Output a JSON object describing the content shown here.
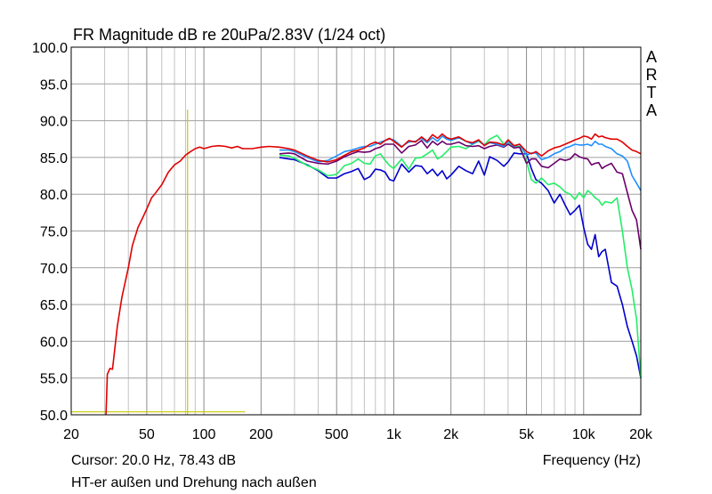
{
  "chart_data": {
    "type": "line",
    "title": "FR Magnitude dB re 20uPa/2.83V (1/24 oct)",
    "watermark": "ARTA",
    "xlabel": "Frequency (Hz)",
    "ylabel": "",
    "x_scale": "log",
    "xlim": [
      20,
      20000
    ],
    "ylim": [
      50,
      100
    ],
    "grid": true,
    "x_tick_labels": [
      {
        "value": 20,
        "label": "20"
      },
      {
        "value": 50,
        "label": "50"
      },
      {
        "value": 100,
        "label": "100"
      },
      {
        "value": 200,
        "label": "200"
      },
      {
        "value": 500,
        "label": "500"
      },
      {
        "value": 1000,
        "label": "1k"
      },
      {
        "value": 2000,
        "label": "2k"
      },
      {
        "value": 5000,
        "label": "5k"
      },
      {
        "value": 10000,
        "label": "10k"
      },
      {
        "value": 20000,
        "label": "20k"
      }
    ],
    "y_tick_labels": [
      "50.0",
      "55.0",
      "60.0",
      "65.0",
      "70.0",
      "75.0",
      "80.0",
      "85.0",
      "90.0",
      "95.0",
      "100.0"
    ],
    "cursor_text": "Cursor: 20.0 Hz, 78.43 dB",
    "note": "HT-er außen und Drehung nach außen",
    "markers": {
      "color": "#c8c800",
      "vertical_line": {
        "x": 82,
        "y_top": 91.5,
        "y_bottom": 50
      },
      "horizontal_line": {
        "y": 50.4,
        "x_start": 20,
        "x_end": 165
      }
    },
    "series": [
      {
        "color": "#e00000",
        "x": [
          30.5,
          31,
          32,
          33,
          35,
          37,
          40,
          42,
          45,
          48,
          50,
          53,
          55,
          60,
          65,
          70,
          75,
          80,
          85,
          90,
          95,
          100,
          110,
          120,
          130,
          140,
          150,
          160,
          180,
          200,
          220,
          250,
          280,
          300,
          350,
          400,
          450,
          500,
          550,
          600,
          650,
          700,
          750,
          800,
          850,
          900,
          950,
          1000,
          1100,
          1200,
          1300,
          1400,
          1500,
          1600,
          1700,
          1800,
          1900,
          2000,
          2200,
          2400,
          2600,
          2800,
          3000,
          3200,
          3500,
          3800,
          4000,
          4300,
          4600,
          5000,
          5300,
          5600,
          6000,
          6500,
          7000,
          7500,
          8000,
          8500,
          9000,
          9500,
          10000,
          10500,
          11000,
          11500,
          12000,
          12500,
          13000,
          14000,
          15000,
          16000,
          17000,
          18000,
          19000,
          20000
        ],
        "y": [
          50,
          55.5,
          56.3,
          56.2,
          62,
          66,
          70,
          73,
          75.5,
          77,
          78,
          79.5,
          80,
          81.3,
          83,
          84,
          84.5,
          85.3,
          85.8,
          86.2,
          86.4,
          86.2,
          86.5,
          86.6,
          86.5,
          86.3,
          86.5,
          86.2,
          86.2,
          86.4,
          86.5,
          86.4,
          86.2,
          86,
          85.2,
          84.6,
          84.4,
          84.7,
          85.3,
          85.8,
          86,
          86.3,
          86.8,
          87.1,
          86.8,
          87.3,
          87.6,
          87.2,
          86.4,
          87.3,
          87.1,
          87.8,
          87.2,
          88.1,
          87.6,
          88.2,
          87.7,
          87.5,
          87.8,
          87.2,
          87,
          87.4,
          86.6,
          87.1,
          87,
          86.7,
          87.4,
          86.6,
          86.8,
          85.8,
          85.5,
          85.8,
          85.2,
          85.9,
          86.3,
          86.5,
          86.8,
          87.1,
          87.4,
          87.6,
          87.9,
          87.8,
          87.5,
          88.2,
          87.8,
          87.9,
          87.7,
          87.5,
          87.5,
          87.1,
          86.5,
          86,
          85.8,
          85.5
        ]
      },
      {
        "color": "#1e90ff",
        "x": [
          250,
          280,
          300,
          350,
          400,
          450,
          500,
          550,
          600,
          650,
          700,
          750,
          800,
          850,
          900,
          950,
          1000,
          1100,
          1200,
          1300,
          1400,
          1500,
          1600,
          1700,
          1800,
          1900,
          2000,
          2200,
          2400,
          2600,
          2800,
          3000,
          3200,
          3500,
          3800,
          4000,
          4300,
          4600,
          5000,
          5300,
          5600,
          6000,
          6500,
          7000,
          7500,
          8000,
          8500,
          9000,
          9500,
          10000,
          10500,
          11000,
          11500,
          12000,
          12500,
          13000,
          14000,
          15000,
          16000,
          17000,
          18000,
          19000,
          20000
        ],
        "y": [
          86,
          86,
          85.8,
          85,
          84.4,
          84.6,
          85.2,
          85.8,
          86,
          86.3,
          86.5,
          86.5,
          86.8,
          87.1,
          87.3,
          87.5,
          87.4,
          86.5,
          87.1,
          87.2,
          87.6,
          87,
          87.7,
          87.2,
          87.9,
          87.5,
          87.3,
          87.7,
          87.2,
          86.8,
          87.3,
          86.7,
          87,
          86.8,
          86.5,
          87.2,
          86.5,
          86.8,
          85.3,
          85.6,
          85.6,
          84.7,
          85,
          85.5,
          85.8,
          86.3,
          86.5,
          86.8,
          86.7,
          86.7,
          86.8,
          86.6,
          87.2,
          86.8,
          86.8,
          86.5,
          86.2,
          85.5,
          85.2,
          84.5,
          82.5,
          81.5,
          80.5
        ]
      },
      {
        "color": "#6b006b",
        "x": [
          250,
          280,
          300,
          350,
          400,
          450,
          500,
          550,
          600,
          650,
          700,
          750,
          800,
          850,
          900,
          950,
          1000,
          1100,
          1200,
          1300,
          1400,
          1500,
          1600,
          1700,
          1800,
          1900,
          2000,
          2200,
          2400,
          2600,
          2800,
          3000,
          3200,
          3500,
          3800,
          4000,
          4300,
          4600,
          5000,
          5300,
          5600,
          6000,
          6500,
          7000,
          7500,
          8000,
          8500,
          9000,
          9500,
          10000,
          10500,
          11000,
          11500,
          12000,
          12500,
          13000,
          14000,
          15000,
          16000,
          17000,
          18000,
          19000,
          20000
        ],
        "y": [
          85.5,
          85.6,
          85.5,
          84.5,
          84.2,
          84.1,
          84.5,
          85.1,
          85.5,
          85.8,
          85.7,
          85.8,
          86.2,
          86.4,
          86.8,
          86.8,
          86.8,
          85.6,
          86.5,
          86.7,
          87.3,
          86.3,
          87.2,
          86.7,
          87.2,
          86.8,
          86.8,
          87.1,
          86.6,
          86.5,
          86.6,
          86.2,
          86.5,
          86.7,
          86.4,
          86.8,
          86.3,
          86.4,
          84.2,
          84.8,
          84.8,
          83.8,
          83.6,
          84.2,
          84.8,
          84.6,
          84.8,
          85.5,
          85.1,
          84.9,
          84.8,
          84,
          84.2,
          84.3,
          83.5,
          83.8,
          84.2,
          83,
          82.8,
          80.2,
          77.8,
          76.5,
          72.5
        ]
      },
      {
        "color": "#22ee66",
        "x": [
          250,
          280,
          300,
          350,
          400,
          450,
          500,
          550,
          600,
          650,
          700,
          750,
          800,
          850,
          900,
          950,
          1000,
          1100,
          1200,
          1300,
          1400,
          1500,
          1600,
          1700,
          1800,
          1900,
          2000,
          2200,
          2400,
          2600,
          2800,
          3000,
          3200,
          3500,
          3800,
          4000,
          4300,
          4600,
          5000,
          5300,
          5600,
          6000,
          6500,
          7000,
          7500,
          8000,
          8500,
          9000,
          9500,
          10000,
          10500,
          11000,
          11500,
          12000,
          12500,
          13000,
          14000,
          15000,
          16000,
          17000,
          18000,
          19000,
          20000
        ],
        "y": [
          85.3,
          85.2,
          84.9,
          83.9,
          83.3,
          82.5,
          82.7,
          83.9,
          84.2,
          84.8,
          84.2,
          84.1,
          85.2,
          85.5,
          84.6,
          83.9,
          83.5,
          84.8,
          83.4,
          84.9,
          85,
          85.5,
          86,
          84.8,
          85.2,
          85.8,
          86.4,
          86.5,
          86.2,
          86.8,
          87.2,
          86.7,
          87.5,
          88,
          86.8,
          86.9,
          86.5,
          86.5,
          84.5,
          82,
          81.5,
          82.2,
          81.3,
          81.5,
          81,
          80.3,
          80,
          79.3,
          80.2,
          79.5,
          80.5,
          80.1,
          79.5,
          79.2,
          78.5,
          79,
          78.8,
          79.5,
          75,
          70,
          67,
          63,
          55
        ]
      },
      {
        "color": "#0000cc",
        "x": [
          250,
          280,
          300,
          350,
          400,
          450,
          500,
          550,
          600,
          650,
          700,
          750,
          800,
          850,
          900,
          950,
          1000,
          1100,
          1200,
          1300,
          1400,
          1500,
          1600,
          1700,
          1800,
          1900,
          2000,
          2200,
          2400,
          2600,
          2800,
          3000,
          3200,
          3500,
          3800,
          4000,
          4300,
          4600,
          5000,
          5300,
          5600,
          6000,
          6500,
          7000,
          7500,
          8000,
          8500,
          9000,
          9500,
          10000,
          10500,
          11000,
          11500,
          12000,
          12500,
          13000,
          14000,
          15000,
          16000,
          17000,
          18000,
          19000,
          20000
        ],
        "y": [
          85,
          84.8,
          84.7,
          84,
          83.2,
          82.2,
          82.2,
          82.8,
          83.1,
          83.5,
          82,
          82.4,
          83.4,
          83.3,
          83,
          82,
          81.8,
          84.1,
          83,
          83.9,
          83.8,
          82.8,
          83.4,
          82.5,
          83.2,
          82.1,
          82.6,
          83.8,
          83.2,
          82.8,
          84.5,
          82.6,
          85.1,
          84.6,
          83.8,
          84.4,
          85.6,
          85.5,
          85.5,
          83.5,
          82,
          81.5,
          80.5,
          78.8,
          80,
          78.5,
          77.2,
          77.8,
          78.5,
          75.5,
          73.2,
          72.5,
          74.5,
          71.5,
          72.2,
          72.5,
          68,
          67.5,
          65,
          62,
          60,
          58,
          55
        ]
      }
    ]
  }
}
